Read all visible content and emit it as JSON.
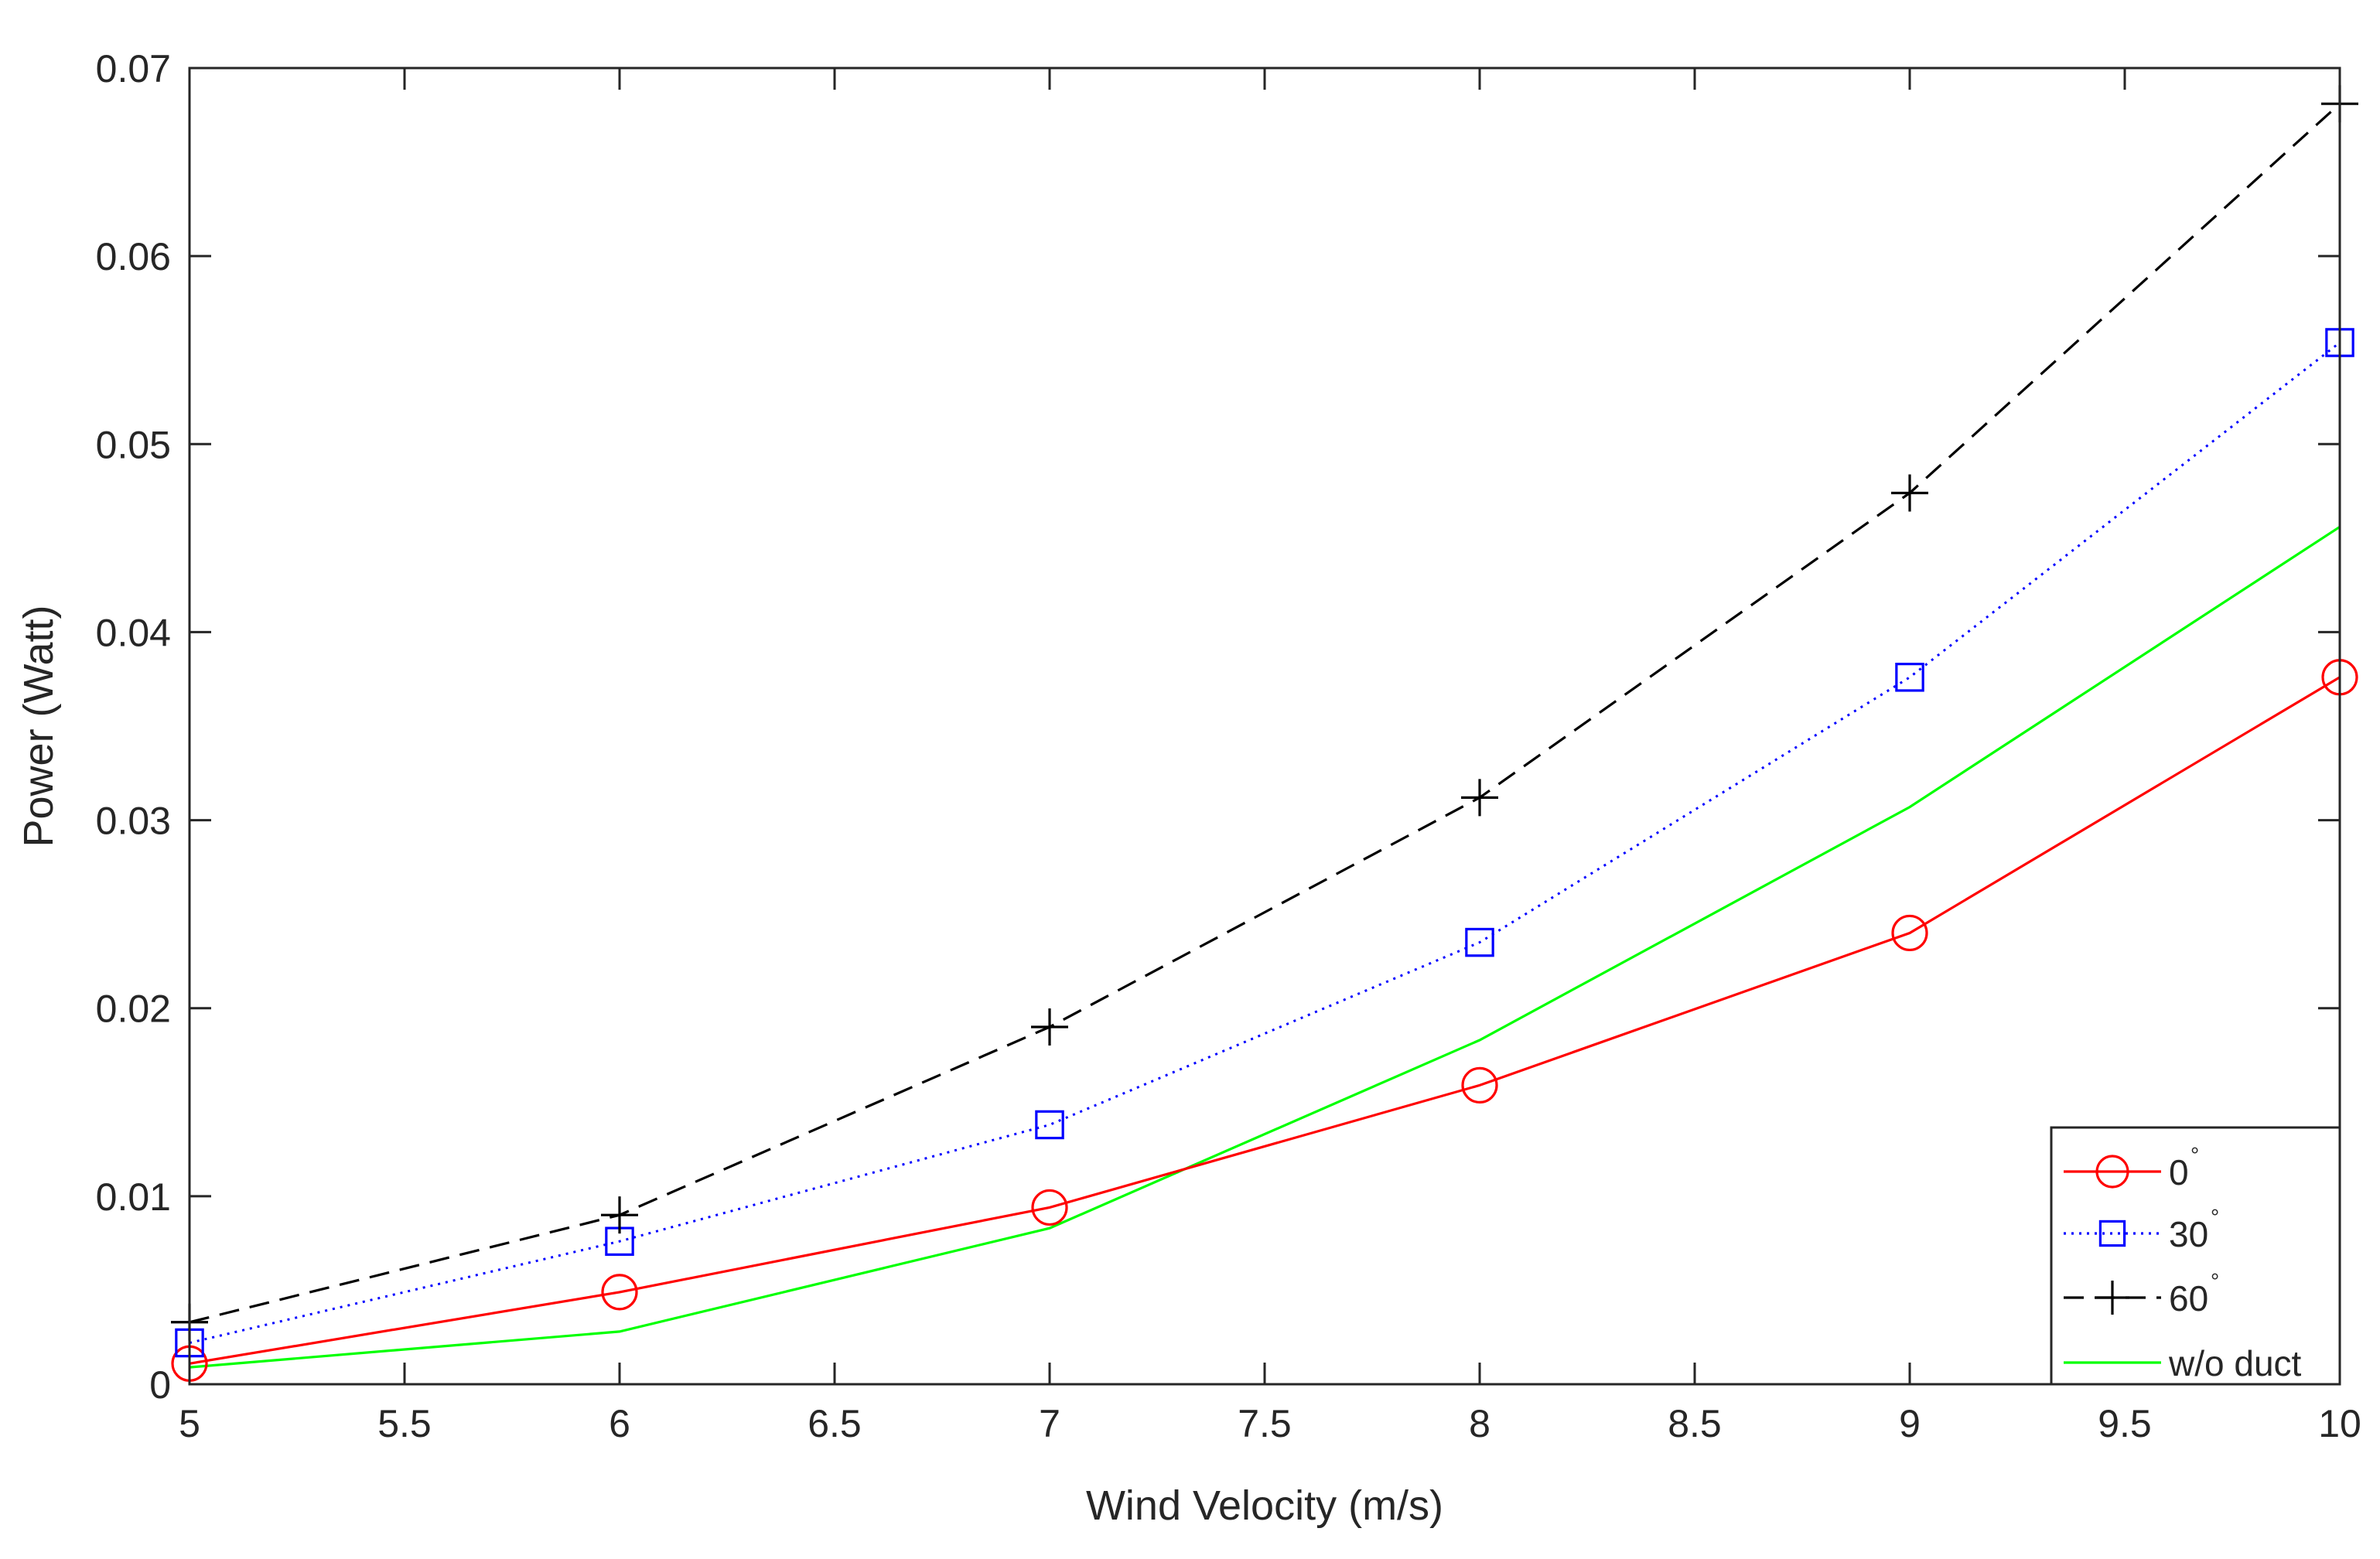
{
  "chart_data": {
    "type": "line",
    "title": "",
    "xlabel": "Wind Velocity (m/s)",
    "ylabel": "Power (Watt)",
    "xlim": [
      5,
      10
    ],
    "ylim": [
      0,
      0.07
    ],
    "xticks": [
      "5",
      "5.5",
      "6",
      "6.5",
      "7",
      "7.5",
      "8",
      "8.5",
      "9",
      "9.5",
      "10"
    ],
    "xtick_values": [
      5,
      5.5,
      6,
      6.5,
      7,
      7.5,
      8,
      8.5,
      9,
      9.5,
      10
    ],
    "yticks": [
      "0",
      "0.01",
      "0.02",
      "0.03",
      "0.04",
      "0.05",
      "0.06",
      "0.07"
    ],
    "ytick_values": [
      0,
      0.01,
      0.02,
      0.03,
      0.04,
      0.05,
      0.06,
      0.07
    ],
    "grid": false,
    "legend_position": "bottom-right",
    "x": [
      5,
      6,
      7,
      8,
      9,
      10
    ],
    "series": [
      {
        "name": "0",
        "degree_symbol": "°",
        "color": "#ff0000",
        "dash": "solid",
        "marker": "circle",
        "values": [
          0.0011,
          0.0049,
          0.0094,
          0.0159,
          0.024,
          0.0376
        ]
      },
      {
        "name": "30",
        "degree_symbol": "°",
        "color": "#0000ff",
        "dash": "dotted",
        "marker": "square",
        "values": [
          0.0022,
          0.0076,
          0.0138,
          0.0235,
          0.0376,
          0.0554
        ]
      },
      {
        "name": "60",
        "degree_symbol": "°",
        "color": "#000000",
        "dash": "dashed",
        "marker": "plus",
        "values": [
          0.0033,
          0.009,
          0.019,
          0.0312,
          0.0474,
          0.0681
        ]
      },
      {
        "name": "w/o duct",
        "degree_symbol": "",
        "color": "#00ff00",
        "dash": "solid",
        "marker": "none",
        "values": [
          0.0009,
          0.0028,
          0.0083,
          0.0183,
          0.0307,
          0.0456
        ]
      }
    ]
  }
}
